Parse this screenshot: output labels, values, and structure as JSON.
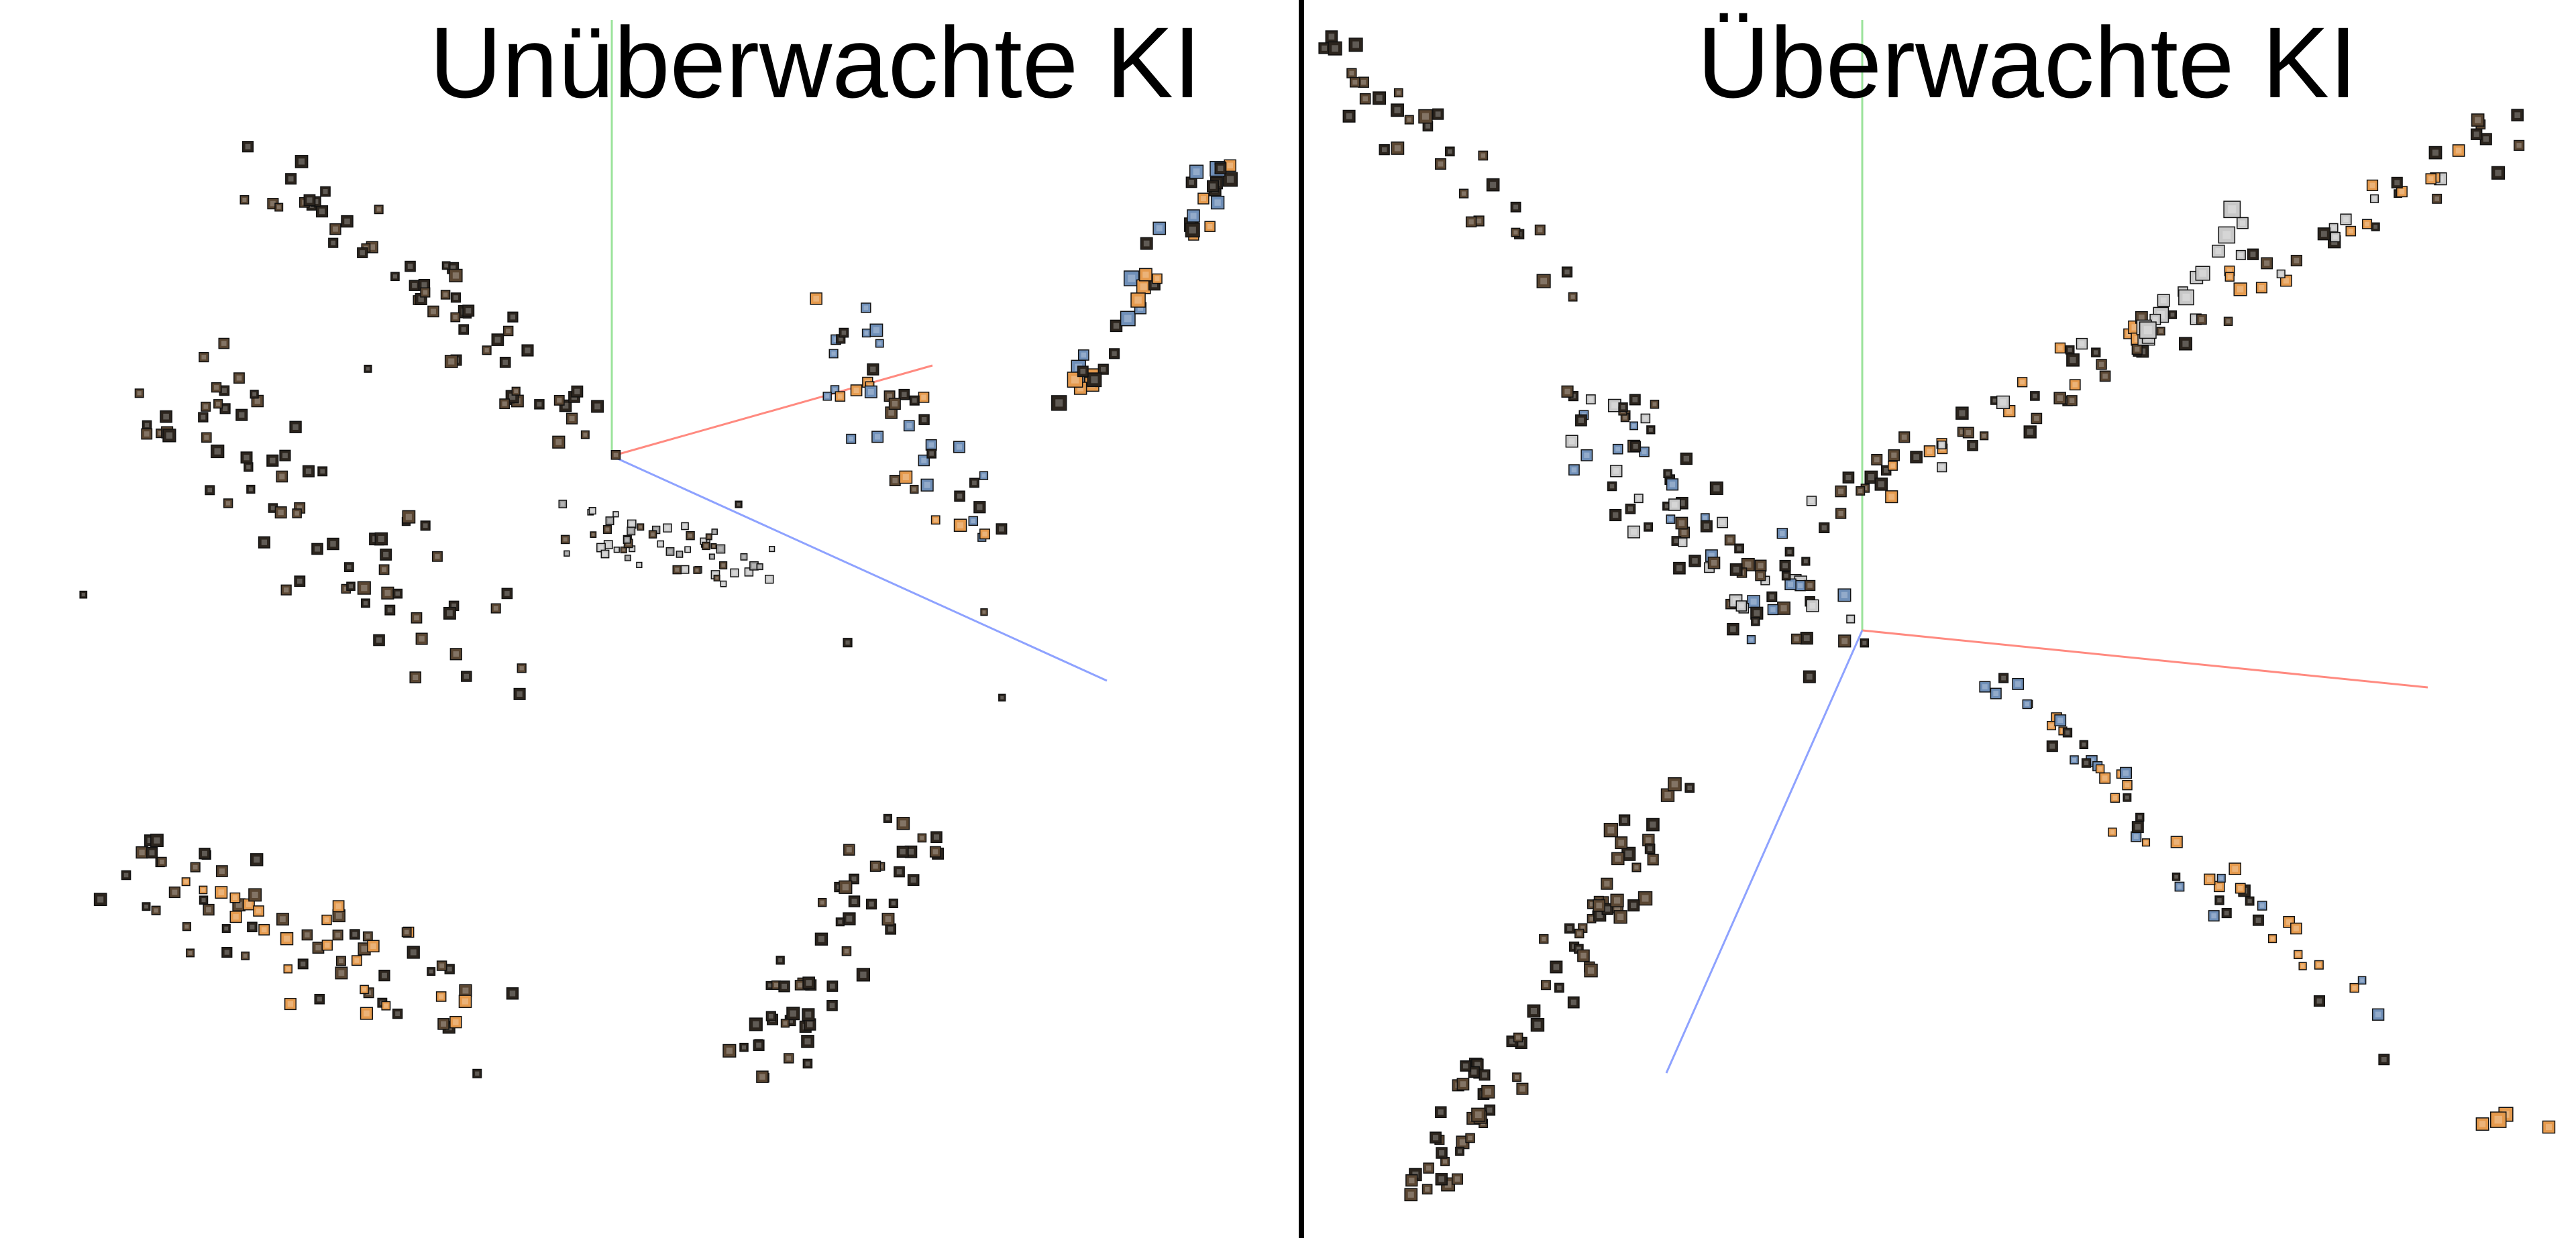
{
  "panels": [
    {
      "title": "Unüberwachte KI"
    },
    {
      "title": "Überwachte KI"
    }
  ],
  "colors": {
    "axis_x": "#ff8a80",
    "axis_y": "#9be39b",
    "axis_z": "#8ea2ff",
    "thumb_dark": "#2b241d",
    "thumb_brown": "#5a4632",
    "thumb_orange": "#e59a4d",
    "thumb_blue": "#6f8fb8",
    "thumb_grey": "#c8c8c8",
    "divider": "#000000"
  },
  "icons": [
    "image-thumbnail-icon"
  ]
}
